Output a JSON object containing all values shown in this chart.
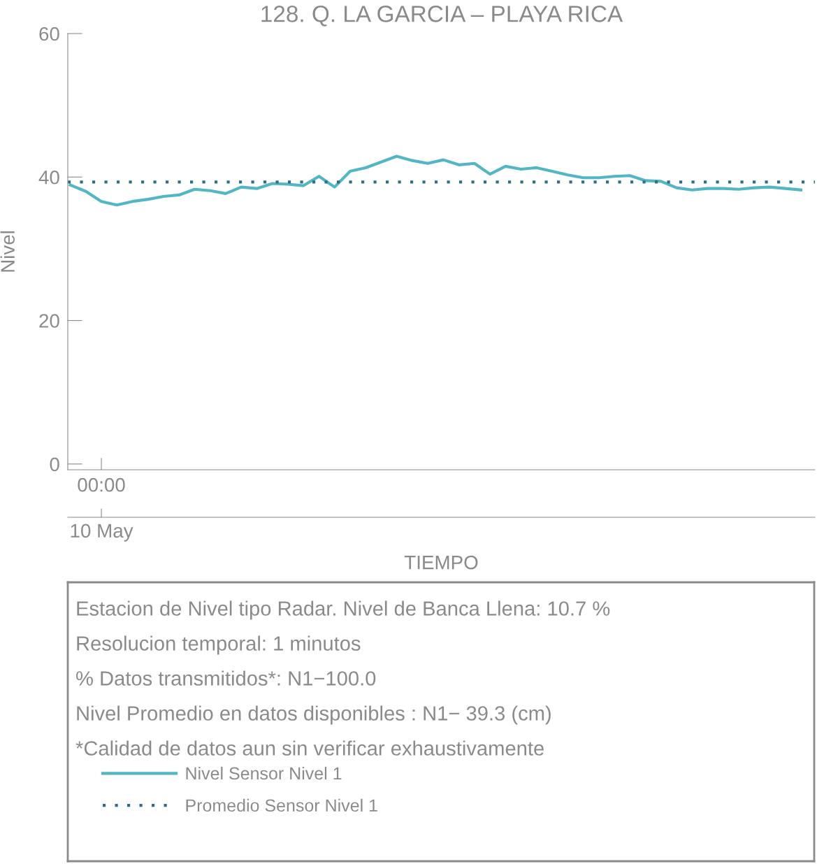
{
  "chart_data": {
    "type": "line",
    "title": "128. Q. LA GARCIA – PLAYA RICA",
    "xlabel": "TIEMPO",
    "ylabel": "Nivel",
    "categories": [
      null,
      null,
      "00:00",
      null,
      null,
      null,
      null,
      null,
      null,
      null,
      null,
      null,
      null,
      null,
      null,
      null,
      null,
      null,
      null,
      null,
      null,
      null,
      null,
      null,
      null,
      null,
      null,
      null,
      null,
      null,
      null,
      null,
      null,
      null,
      null,
      null,
      null,
      null,
      null,
      null,
      null,
      null,
      null,
      null,
      null,
      null,
      null,
      null
    ],
    "ylim": [
      -0.8,
      60
    ],
    "yticks": [
      0,
      20,
      40,
      60
    ],
    "grid": false,
    "legend": "bottom",
    "series": [
      {
        "name": "Nivel Sensor Nivel 1",
        "color": "#52b6c4",
        "line_style": "solid",
        "values": [
          38.9,
          38.0,
          36.6,
          36.1,
          36.6,
          36.9,
          37.3,
          37.5,
          38.3,
          38.1,
          37.7,
          38.6,
          38.4,
          39.1,
          39.0,
          38.8,
          40.1,
          38.6,
          40.8,
          41.3,
          42.1,
          42.9,
          42.3,
          41.9,
          42.4,
          41.7,
          41.9,
          40.4,
          41.5,
          41.1,
          41.3,
          40.8,
          40.3,
          39.9,
          39.9,
          40.1,
          40.2,
          39.5,
          39.4,
          38.5,
          38.2,
          38.4,
          38.4,
          38.3,
          38.5,
          38.6,
          38.4,
          38.2
        ]
      }
    ],
    "ref_lines": [
      {
        "axis": "y",
        "value": 39.3,
        "label": "Promedio Sensor Nivel 1",
        "color": "#2e6f88",
        "line_style": "dotted"
      }
    ],
    "annotations": [
      {
        "text": "10 May",
        "x": "00:00"
      },
      "Estacion de Nivel tipo Radar. Nivel de Banca Llena: 10.7 %",
      "Resolucion temporal: 1 minutos",
      "% Datos transmitidos*: N1−100.0",
      "Nivel Promedio en datos disponibles : N1− 39.3 (cm)",
      "*Calidad de datos aun sin verificar exhaustivamente"
    ]
  }
}
